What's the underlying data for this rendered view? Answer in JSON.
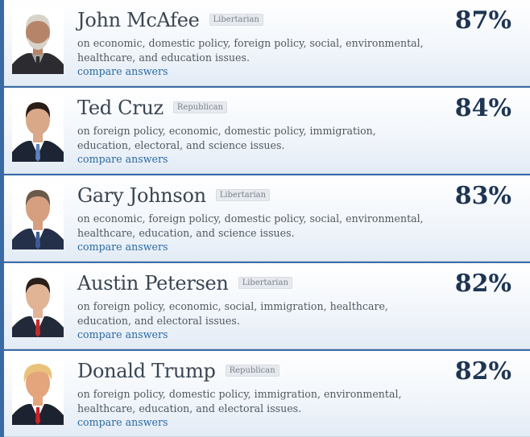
{
  "candidates": [
    {
      "name": "John McAfee",
      "party": "Libertarian",
      "description": "on economic, domestic policy, foreign policy, social, environmental, healthcare, and education issues.",
      "compare": "compare answers",
      "percent": "87%",
      "colors": {
        "hair": "#d8d3c8",
        "skin": "#b68468",
        "suit": "#2c2c30",
        "shirt": "#a8a39a",
        "tie": "#2c2c30"
      }
    },
    {
      "name": "Ted Cruz",
      "party": "Republican",
      "description": "on foreign policy, economic, domestic policy, immigration, education, electoral, and science issues.",
      "compare": "compare answers",
      "percent": "84%",
      "colors": {
        "hair": "#2a1d16",
        "skin": "#d9a889",
        "suit": "#1d2433",
        "shirt": "#ffffff",
        "tie": "#5d82bf"
      }
    },
    {
      "name": "Gary Johnson",
      "party": "Libertarian",
      "description": "on economic, foreign policy, domestic policy, social, environmental, healthcare, education, and science issues.",
      "compare": "compare answers",
      "percent": "83%",
      "colors": {
        "hair": "#6a5a4a",
        "skin": "#d69f80",
        "suit": "#24304a",
        "shirt": "#ffffff",
        "tie": "#3e5d96"
      }
    },
    {
      "name": "Austin Petersen",
      "party": "Libertarian",
      "description": "on foreign policy, economic, social, immigration, healthcare, education, and electoral issues.",
      "compare": "compare answers",
      "percent": "82%",
      "colors": {
        "hair": "#2a1f19",
        "skin": "#e2b496",
        "suit": "#222a3a",
        "shirt": "#ffffff",
        "tie": "#c62a2a"
      }
    },
    {
      "name": "Donald Trump",
      "party": "Republican",
      "description": "on foreign policy, domestic policy, immigration, environmental, healthcare, education, and electoral issues.",
      "compare": "compare answers",
      "percent": "82%",
      "colors": {
        "hair": "#e9c37a",
        "skin": "#e4a57c",
        "suit": "#1d2230",
        "shirt": "#ffffff",
        "tie": "#c8202a"
      }
    }
  ],
  "icons": {
    "avatar": "portrait-avatar-icon"
  }
}
